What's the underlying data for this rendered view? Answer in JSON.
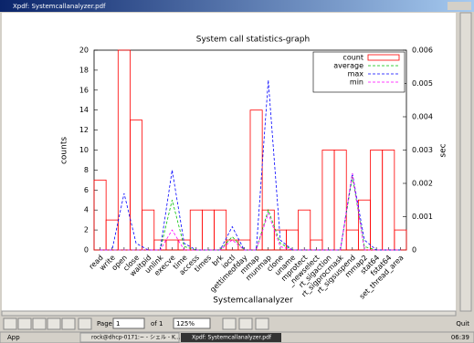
{
  "window": {
    "title": "Xpdf: Systemcallanalyzer.pdf"
  },
  "toolbar": {
    "page_label": "Page",
    "page_input": "1",
    "of_label": "of 1",
    "zoom": "125%",
    "quit": "Quit"
  },
  "taskbar": {
    "app": "App",
    "task1": "rock@dhcp-0171:~ - シェル - K...",
    "task2": "Xpdf: Systemcallanalyzer.pdf",
    "clock": "06:39"
  },
  "chart_data": {
    "type": "combo",
    "title": "System call statistics-graph",
    "xlabel": "Systemcallanalyzer",
    "ylabel": "counts",
    "y2label": "sec",
    "categories": [
      "read",
      "write",
      "open",
      "close",
      "waitpid",
      "unlink",
      "execve",
      "time",
      "access",
      "times",
      "brk",
      "ioctl",
      "gettimeofday",
      "mmap",
      "munmap",
      "clone",
      "uname",
      "mprotect",
      "_newselect",
      "rt_sigaction",
      "rt_sigprocmask",
      "rt_sigsuspend",
      "mmap2",
      "stat64",
      "fstat64",
      "set_thread_area"
    ],
    "series": [
      {
        "name": "count",
        "color": "#ff0000",
        "style": "bars",
        "values": [
          7,
          3,
          20,
          13,
          4,
          1,
          1,
          1,
          4,
          4,
          4,
          1,
          1,
          14,
          4,
          2,
          2,
          4,
          1,
          10,
          10,
          2,
          5,
          10,
          10,
          2
        ]
      },
      {
        "name": "average",
        "color": "#00c000",
        "style": "line",
        "axis": "y2",
        "values": [
          0,
          0,
          0,
          0,
          0,
          0,
          0.0015,
          0.0001,
          0,
          0,
          0,
          0.0004,
          0,
          0,
          0.0012,
          0.0002,
          0,
          0,
          0,
          0,
          0,
          0.0022,
          0.0001,
          0,
          0,
          0
        ]
      },
      {
        "name": "max",
        "color": "#0000ff",
        "style": "line",
        "axis": "y2",
        "values": [
          0,
          0,
          0.0017,
          0.0002,
          0,
          0,
          0.0024,
          0.0002,
          0,
          0,
          0,
          0.0007,
          0,
          0,
          0.0051,
          0.0003,
          0,
          0,
          0,
          0,
          0,
          0.0023,
          0.0003,
          0,
          0,
          0
        ]
      },
      {
        "name": "min",
        "color": "#ff00ff",
        "style": "line",
        "axis": "y2",
        "values": [
          0,
          0,
          0,
          0,
          0,
          0,
          0.0006,
          0,
          0,
          0,
          0,
          0.0003,
          0,
          0,
          0.0011,
          0.0001,
          0,
          0,
          0,
          0,
          0,
          0.0023,
          0,
          0,
          0,
          0
        ]
      }
    ],
    "ylim": [
      0,
      20
    ],
    "yticks": [
      0,
      2,
      4,
      6,
      8,
      10,
      12,
      14,
      16,
      18,
      20
    ],
    "y2lim": [
      0,
      0.006
    ],
    "y2ticks": [
      0,
      0.001,
      0.002,
      0.003,
      0.004,
      0.005,
      0.006
    ],
    "legend": "top-right"
  }
}
